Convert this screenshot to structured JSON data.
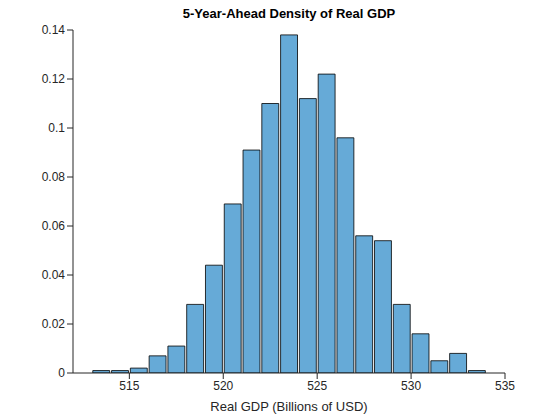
{
  "chart_data": {
    "type": "histogram",
    "title": "5-Year-Ahead Density of Real GDP",
    "x_label": "Real GDP (Billions of USD)",
    "bins": [
      513,
      514,
      515,
      516,
      517,
      518,
      519,
      520,
      521,
      522,
      523,
      524,
      525,
      526,
      527,
      528,
      529,
      530,
      531,
      532,
      533,
      534
    ],
    "values": [
      0.001,
      0.001,
      0.002,
      0.007,
      0.011,
      0.028,
      0.044,
      0.069,
      0.091,
      0.11,
      0.138,
      0.112,
      0.122,
      0.096,
      0.056,
      0.054,
      0.028,
      0.016,
      0.005,
      0.008,
      0.001
    ],
    "color": "#66aad7",
    "xlim": [
      512,
      535
    ],
    "xticks": [
      515,
      520,
      525,
      530,
      535
    ],
    "ylim": [
      0,
      0.14
    ],
    "yticks": [
      0,
      0.02,
      0.04,
      0.06,
      0.08,
      0.1,
      0.12,
      0.14
    ],
    "grid": false
  }
}
